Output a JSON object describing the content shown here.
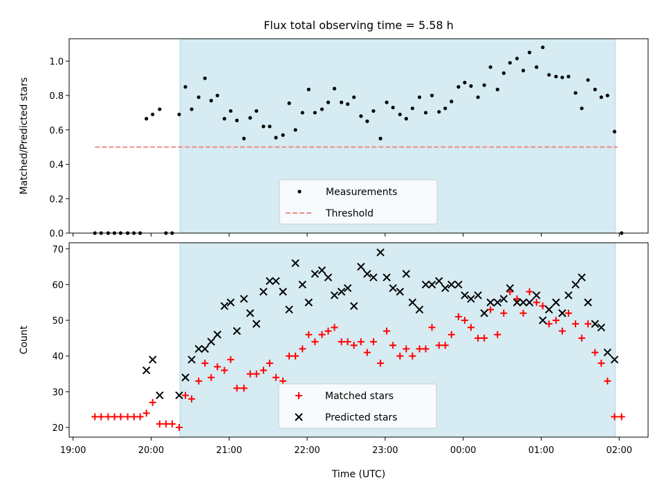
{
  "chart_data": [
    {
      "type": "scatter",
      "title": "Flux total observing time = 5.58 h",
      "ylabel": "Matched/Predicted stars",
      "xlabel": "",
      "x_unit": "UTC time (hours; values above 24 are after midnight)",
      "xlim": [
        18.95,
        26.37
      ],
      "ylim": [
        0.0,
        1.13
      ],
      "yticks": [
        "0.0",
        "0.2",
        "0.4",
        "0.6",
        "0.8",
        "1.0"
      ],
      "shaded_interval": [
        20.37,
        25.95
      ],
      "shaded_color": "#add8e6",
      "legend_position": "lower center",
      "series": [
        {
          "name": "Measurements",
          "marker": "dot",
          "color": "#000000",
          "x": [
            19.28,
            19.36,
            19.45,
            19.53,
            19.61,
            19.7,
            19.78,
            19.86,
            19.94,
            20.02,
            20.11,
            20.19,
            20.27,
            20.36,
            20.44,
            20.52,
            20.61,
            20.69,
            20.77,
            20.85,
            20.94,
            21.02,
            21.1,
            21.19,
            21.27,
            21.35,
            21.44,
            21.52,
            21.6,
            21.69,
            21.77,
            21.85,
            21.94,
            22.02,
            22.1,
            22.19,
            22.27,
            22.35,
            22.44,
            22.52,
            22.6,
            22.69,
            22.77,
            22.85,
            22.94,
            23.02,
            23.1,
            23.19,
            23.27,
            23.35,
            23.44,
            23.52,
            23.6,
            23.69,
            23.77,
            23.85,
            23.94,
            24.02,
            24.1,
            24.19,
            24.27,
            24.35,
            24.44,
            24.52,
            24.6,
            24.69,
            24.77,
            24.85,
            24.94,
            25.02,
            25.1,
            25.19,
            25.27,
            25.35,
            25.44,
            25.52,
            25.6,
            25.69,
            25.77,
            25.85,
            25.94,
            26.03
          ],
          "y": [
            0.0,
            0.0,
            0.0,
            0.0,
            0.0,
            0.0,
            0.0,
            0.0,
            0.665,
            0.69,
            0.72,
            0.0,
            0.0,
            0.69,
            0.85,
            0.72,
            0.79,
            0.9,
            0.77,
            0.8,
            0.665,
            0.71,
            0.655,
            0.55,
            0.67,
            0.71,
            0.62,
            0.62,
            0.555,
            0.57,
            0.755,
            0.6,
            0.7,
            0.835,
            0.7,
            0.72,
            0.76,
            0.84,
            0.76,
            0.75,
            0.79,
            0.68,
            0.65,
            0.71,
            0.55,
            0.76,
            0.73,
            0.69,
            0.665,
            0.725,
            0.79,
            0.7,
            0.8,
            0.705,
            0.725,
            0.765,
            0.85,
            0.875,
            0.855,
            0.79,
            0.86,
            0.965,
            0.835,
            0.93,
            0.99,
            1.015,
            0.945,
            1.05,
            0.965,
            1.08,
            0.92,
            0.91,
            0.905,
            0.91,
            0.815,
            0.725,
            0.89,
            0.835,
            0.79,
            0.8,
            0.59,
            0.0
          ]
        },
        {
          "name": "Threshold",
          "style": "dashed",
          "color": "#f08080",
          "x": [
            19.28,
            25.98
          ],
          "y": [
            0.5,
            0.5
          ]
        }
      ]
    },
    {
      "type": "scatter",
      "title": "",
      "xlabel": "Time (UTC)",
      "ylabel": "Count",
      "x_unit": "UTC time (hours; values above 24 are after midnight)",
      "xlim": [
        18.95,
        26.37
      ],
      "ylim": [
        17.3,
        71.7
      ],
      "yticks": [
        "20",
        "30",
        "40",
        "50",
        "60",
        "70"
      ],
      "xticks": [
        "19:00",
        "20:00",
        "21:00",
        "22:00",
        "23:00",
        "00:00",
        "01:00",
        "02:00"
      ],
      "shaded_interval": [
        20.37,
        25.95
      ],
      "shaded_color": "#add8e6",
      "legend_position": "lower center",
      "series": [
        {
          "name": "Matched stars",
          "marker": "plus",
          "color": "#ff0000",
          "x": [
            19.28,
            19.36,
            19.45,
            19.53,
            19.61,
            19.7,
            19.78,
            19.86,
            19.94,
            20.02,
            20.11,
            20.19,
            20.27,
            20.36,
            20.44,
            20.52,
            20.61,
            20.69,
            20.77,
            20.85,
            20.94,
            21.02,
            21.1,
            21.19,
            21.27,
            21.35,
            21.44,
            21.52,
            21.6,
            21.69,
            21.77,
            21.85,
            21.94,
            22.02,
            22.1,
            22.19,
            22.27,
            22.35,
            22.44,
            22.52,
            22.6,
            22.69,
            22.77,
            22.85,
            22.94,
            23.02,
            23.1,
            23.19,
            23.27,
            23.35,
            23.44,
            23.52,
            23.6,
            23.69,
            23.77,
            23.85,
            23.94,
            24.02,
            24.1,
            24.19,
            24.27,
            24.35,
            24.44,
            24.52,
            24.6,
            24.69,
            24.77,
            24.85,
            24.94,
            25.02,
            25.1,
            25.19,
            25.27,
            25.35,
            25.44,
            25.52,
            25.6,
            25.69,
            25.77,
            25.85,
            25.94,
            26.03
          ],
          "y": [
            23,
            23,
            23,
            23,
            23,
            23,
            23,
            23,
            24,
            27,
            21,
            21,
            21,
            20,
            29,
            28,
            33,
            38,
            34,
            37,
            36,
            39,
            31,
            31,
            35,
            35,
            36,
            38,
            34,
            33,
            40,
            40,
            42,
            46,
            44,
            46,
            47,
            48,
            44,
            44,
            43,
            44,
            41,
            44,
            38,
            47,
            43,
            40,
            42,
            40,
            42,
            42,
            48,
            43,
            43,
            46,
            51,
            50,
            48,
            45,
            45,
            53,
            46,
            52,
            58,
            56,
            52,
            58,
            55,
            54,
            49,
            50,
            47,
            52,
            49,
            45,
            49,
            41,
            38,
            33,
            23,
            23
          ]
        },
        {
          "name": "Predicted stars",
          "marker": "x",
          "color": "#000000",
          "x": [
            19.94,
            20.02,
            20.11,
            20.36,
            20.44,
            20.52,
            20.61,
            20.69,
            20.77,
            20.85,
            20.94,
            21.02,
            21.1,
            21.19,
            21.27,
            21.35,
            21.44,
            21.52,
            21.6,
            21.69,
            21.77,
            21.85,
            21.94,
            22.02,
            22.1,
            22.19,
            22.27,
            22.35,
            22.44,
            22.52,
            22.6,
            22.69,
            22.77,
            22.85,
            22.94,
            23.02,
            23.1,
            23.19,
            23.27,
            23.35,
            23.44,
            23.52,
            23.6,
            23.69,
            23.77,
            23.85,
            23.94,
            24.02,
            24.1,
            24.19,
            24.27,
            24.35,
            24.44,
            24.52,
            24.6,
            24.69,
            24.77,
            24.85,
            24.94,
            25.02,
            25.1,
            25.19,
            25.27,
            25.35,
            25.44,
            25.52,
            25.6,
            25.69,
            25.77,
            25.85,
            25.94
          ],
          "y": [
            36,
            39,
            29,
            29,
            34,
            39,
            42,
            42,
            44,
            46,
            54,
            55,
            47,
            56,
            52,
            49,
            58,
            61,
            61,
            58,
            53,
            66,
            60,
            55,
            63,
            64,
            62,
            57,
            58,
            59,
            54,
            65,
            63,
            62,
            69,
            62,
            59,
            58,
            63,
            55,
            53,
            60,
            60,
            61,
            59,
            60,
            60,
            57,
            56,
            57,
            52,
            55,
            55,
            56,
            59,
            55,
            55,
            55,
            57,
            50,
            53,
            55,
            52,
            57,
            60,
            62,
            55,
            49,
            48,
            41,
            39
          ]
        }
      ]
    }
  ]
}
